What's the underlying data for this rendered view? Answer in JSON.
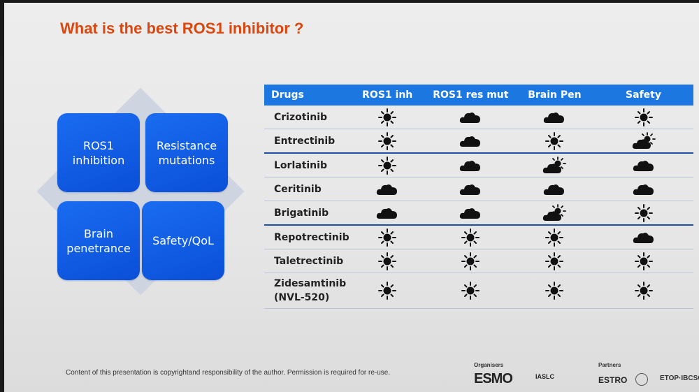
{
  "title": "What is the best ROS1 inhibitor ?",
  "quadrants": [
    "ROS1\ninhibition",
    "Resistance\nmutations",
    "Brain\npenetrance",
    "Safety/QoL"
  ],
  "table": {
    "headers": [
      "Drugs",
      "ROS1 inh",
      "ROS1 res mut",
      "Brain Pen",
      "Safety"
    ],
    "rows": [
      {
        "drug": "Crizotinib",
        "cells": [
          "sun",
          "cloud",
          "cloud",
          "sun"
        ]
      },
      {
        "drug": "Entrectinib",
        "cells": [
          "sun",
          "cloud",
          "sun",
          "sun-cloud"
        ]
      },
      {
        "drug": "Lorlatinib",
        "cells": [
          "sun",
          "cloud",
          "sun-cloud",
          "cloud"
        ]
      },
      {
        "drug": "Ceritinib",
        "cells": [
          "cloud",
          "cloud",
          "cloud",
          "cloud"
        ]
      },
      {
        "drug": "Brigatinib",
        "cells": [
          "cloud",
          "cloud",
          "sun-cloud",
          "sun"
        ]
      },
      {
        "drug": "Repotrectinib",
        "cells": [
          "sun",
          "sun",
          "sun",
          "cloud"
        ]
      },
      {
        "drug": "Taletrectinib",
        "cells": [
          "sun",
          "sun",
          "sun",
          "sun"
        ]
      },
      {
        "drug": "Zidesamtinib\n(NVL-520)",
        "cells": [
          "sun",
          "sun",
          "sun",
          "sun"
        ]
      }
    ]
  },
  "footer": "Content of this presentation is copyrightand responsibility of the author. Permission is required for re-use.",
  "organisers_label": "Organisers",
  "partners_label": "Partners",
  "logos": {
    "esmo": "ESMO",
    "iaslc": "IASLC",
    "estro": "ESTRO",
    "etop": "ETOP·IBCSG"
  }
}
